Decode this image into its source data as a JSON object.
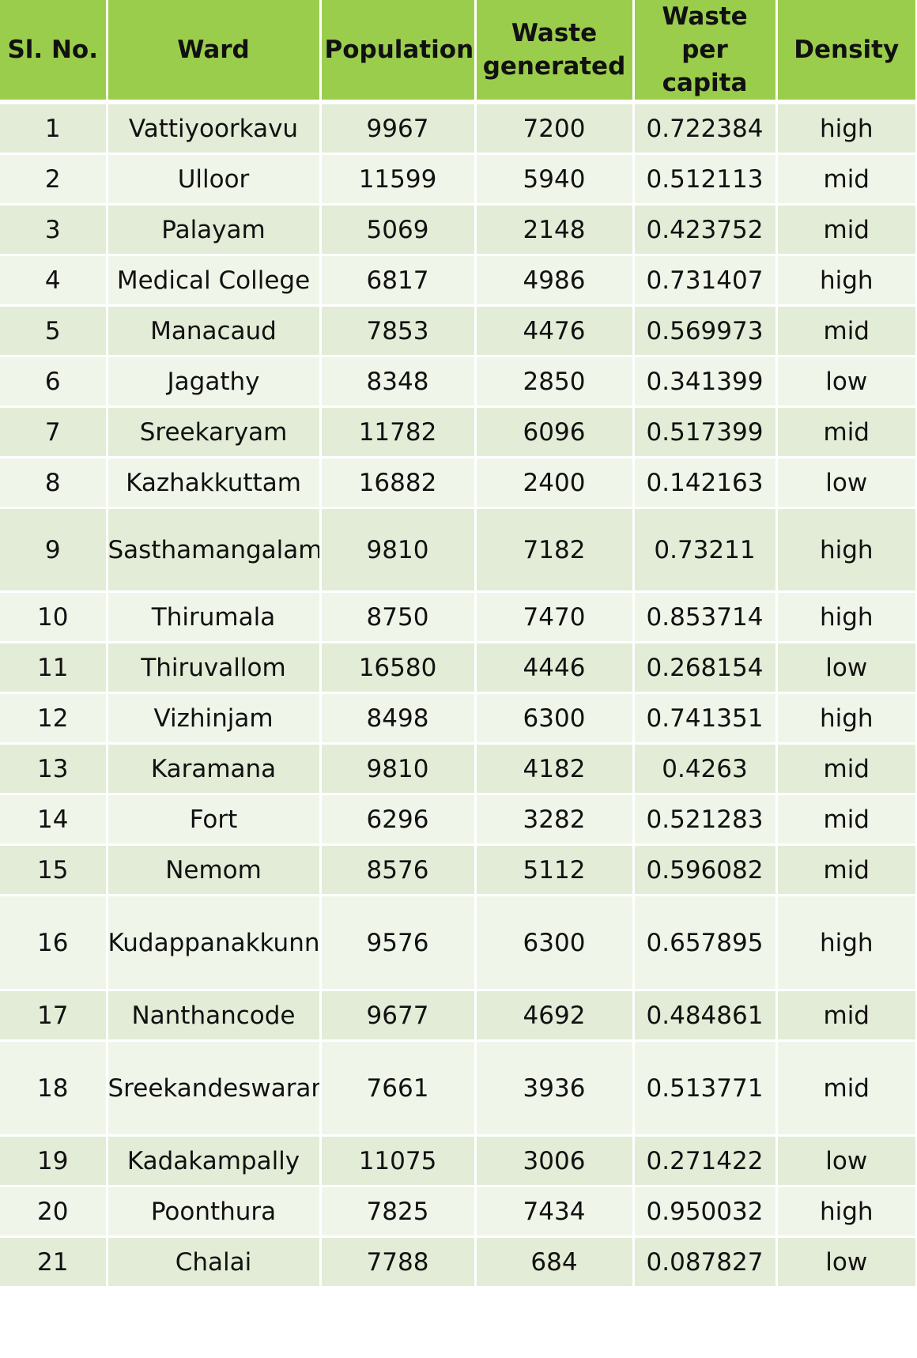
{
  "table": {
    "headers": [
      "Sl. No.",
      "Ward",
      "Population",
      "Waste generated",
      "Waste per capita",
      "Density"
    ],
    "rows": [
      [
        "1",
        "Vattiyoorkavu",
        "9967",
        "7200",
        "0.722384",
        "high"
      ],
      [
        "2",
        "Ulloor",
        "11599",
        "5940",
        "0.512113",
        "mid"
      ],
      [
        "3",
        "Palayam",
        "5069",
        "2148",
        "0.423752",
        "mid"
      ],
      [
        "4",
        "Medical College",
        "6817",
        "4986",
        "0.731407",
        "high"
      ],
      [
        "5",
        "Manacaud",
        "7853",
        "4476",
        "0.569973",
        "mid"
      ],
      [
        "6",
        "Jagathy",
        "8348",
        "2850",
        "0.341399",
        "low"
      ],
      [
        "7",
        "Sreekaryam",
        "11782",
        "6096",
        "0.517399",
        "mid"
      ],
      [
        "8",
        "Kazhakkuttam",
        "16882",
        "2400",
        "0.142163",
        "low"
      ],
      [
        "9",
        "Sasthamangalam",
        "9810",
        "7182",
        "0.73211",
        "high"
      ],
      [
        "10",
        "Thirumala",
        "8750",
        "7470",
        "0.853714",
        "high"
      ],
      [
        "11",
        "Thiruvallom",
        "16580",
        "4446",
        "0.268154",
        "low"
      ],
      [
        "12",
        "Vizhinjam",
        "8498",
        "6300",
        "0.741351",
        "high"
      ],
      [
        "13",
        "Karamana",
        "9810",
        "4182",
        "0.4263",
        "mid"
      ],
      [
        "14",
        "Fort",
        "6296",
        "3282",
        "0.521283",
        "mid"
      ],
      [
        "15",
        "Nemom",
        "8576",
        "5112",
        "0.596082",
        "mid"
      ],
      [
        "16",
        "Kudappanakkunnu",
        "9576",
        "6300",
        "0.657895",
        "high"
      ],
      [
        "17",
        "Nanthancode",
        "9677",
        "4692",
        "0.484861",
        "mid"
      ],
      [
        "18",
        "Sreekandeswaram",
        "7661",
        "3936",
        "0.513771",
        "mid"
      ],
      [
        "19",
        "Kadakampally",
        "11075",
        "3006",
        "0.271422",
        "low"
      ],
      [
        "20",
        "Poonthura",
        "7825",
        "7434",
        "0.950032",
        "high"
      ],
      [
        "21",
        "Chalai",
        "7788",
        "684",
        "0.087827",
        "low"
      ]
    ]
  },
  "colors": {
    "header_background": "#9bcd4c",
    "row_band_dark": "#e3ecd6",
    "row_band_light": "#f0f5ea",
    "grid_lines": "#ffffff"
  }
}
